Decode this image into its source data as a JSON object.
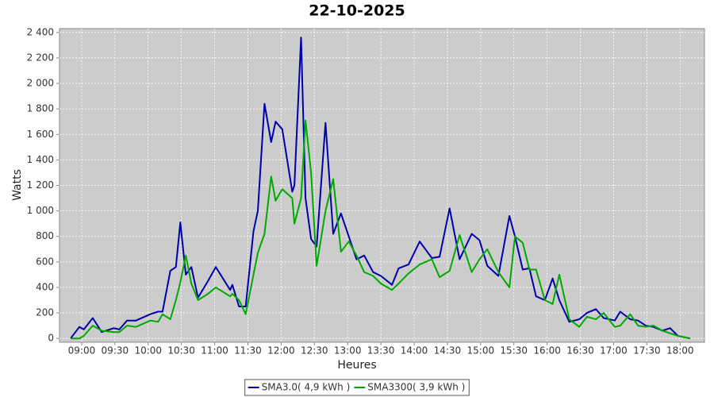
{
  "chart_data": {
    "type": "line",
    "title": "22-10-2025",
    "x_label": "Heures",
    "y_label": "Watts",
    "x": [
      "08:50",
      "08:58",
      "09:02",
      "09:10",
      "09:18",
      "09:29",
      "09:34",
      "09:41",
      "09:49",
      "10:02",
      "10:09",
      "10:13",
      "10:20",
      "10:25",
      "10:29",
      "10:34",
      "10:39",
      "10:45",
      "10:54",
      "11:01",
      "11:14",
      "11:16",
      "11:22",
      "11:28",
      "11:35",
      "11:39",
      "11:45",
      "11:51",
      "11:55",
      "12:01",
      "12:10",
      "12:12",
      "12:18",
      "12:22",
      "12:27",
      "12:32",
      "12:40",
      "12:47",
      "12:54",
      "13:01",
      "13:08",
      "13:15",
      "13:23",
      "13:30",
      "13:40",
      "13:46",
      "13:55",
      "14:05",
      "14:16",
      "14:23",
      "14:32",
      "14:41",
      "14:52",
      "14:59",
      "15:06",
      "15:16",
      "15:26",
      "15:31",
      "15:38",
      "15:44",
      "15:50",
      "15:58",
      "16:05",
      "16:11",
      "16:20",
      "16:29",
      "16:36",
      "16:44",
      "16:51",
      "17:01",
      "17:06",
      "17:15",
      "17:22",
      "17:29",
      "17:36",
      "17:44",
      "17:51",
      "17:58",
      "18:09"
    ],
    "series": [
      {
        "name": "SMA3.0( 4,9 kWh )",
        "color": "#0000aa",
        "values": [
          0,
          90,
          70,
          160,
          50,
          80,
          70,
          140,
          140,
          190,
          210,
          210,
          530,
          560,
          910,
          500,
          560,
          320,
          450,
          560,
          380,
          420,
          250,
          250,
          840,
          1000,
          1840,
          1540,
          1700,
          1640,
          1150,
          1200,
          2360,
          1100,
          780,
          720,
          1690,
          820,
          980,
          800,
          620,
          650,
          520,
          490,
          420,
          550,
          580,
          760,
          630,
          640,
          1020,
          620,
          820,
          770,
          570,
          490,
          960,
          800,
          540,
          550,
          330,
          300,
          470,
          300,
          130,
          150,
          200,
          230,
          160,
          140,
          210,
          150,
          140,
          100,
          90,
          60,
          80,
          20,
          0
        ]
      },
      {
        "name": "SMA3300( 3,9 kWh )",
        "color": "#00aa00",
        "values": [
          0,
          0,
          20,
          100,
          60,
          50,
          50,
          100,
          90,
          140,
          130,
          190,
          150,
          300,
          440,
          650,
          430,
          300,
          350,
          400,
          330,
          350,
          300,
          190,
          500,
          670,
          820,
          1270,
          1080,
          1170,
          1100,
          900,
          1100,
          1710,
          1300,
          570,
          1000,
          1250,
          680,
          760,
          650,
          520,
          490,
          430,
          380,
          430,
          510,
          580,
          620,
          480,
          530,
          810,
          520,
          620,
          700,
          520,
          400,
          800,
          750,
          540,
          540,
          300,
          270,
          500,
          150,
          90,
          170,
          150,
          200,
          90,
          100,
          190,
          100,
          90,
          100,
          60,
          40,
          20,
          0
        ]
      }
    ],
    "xlim": [
      "08:40",
      "18:22"
    ],
    "xticks": [
      "09:00",
      "09:30",
      "10:00",
      "10:30",
      "11:00",
      "11:30",
      "12:00",
      "12:30",
      "13:00",
      "13:30",
      "14:00",
      "14:30",
      "15:00",
      "15:30",
      "16:00",
      "16:30",
      "17:00",
      "17:30",
      "18:00"
    ],
    "ylim": [
      -30,
      2430
    ],
    "yticks": [
      0,
      200,
      400,
      600,
      800,
      {
        "value": 1000,
        "label": "1 000"
      },
      {
        "value": 1200,
        "label": "1 200"
      },
      {
        "value": 1400,
        "label": "1 400"
      },
      {
        "value": 1600,
        "label": "1 600"
      },
      {
        "value": 1800,
        "label": "1 800"
      },
      {
        "value": 2000,
        "label": "2 000"
      },
      {
        "value": 2200,
        "label": "2 200"
      },
      {
        "value": 2400,
        "label": "2 400"
      }
    ],
    "grid": true,
    "legend": "bottom"
  }
}
